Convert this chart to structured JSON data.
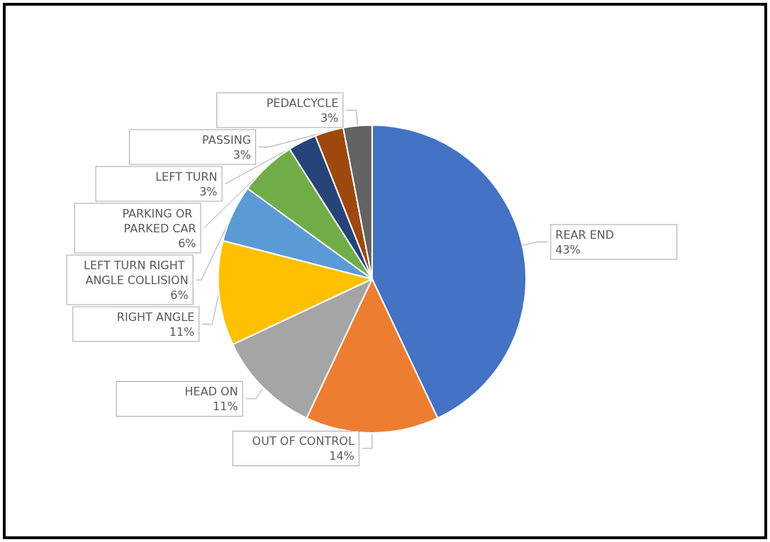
{
  "chart_data": {
    "type": "pie",
    "categories": [
      "REAR END",
      "OUT OF CONTROL",
      "HEAD ON",
      "RIGHT ANGLE",
      "LEFT TURN RIGHT ANGLE COLLISION",
      "PARKING OR PARKED CAR",
      "LEFT TURN",
      "PASSING",
      "PEDALCYCLE"
    ],
    "values": [
      43,
      14,
      11,
      11,
      6,
      6,
      3,
      3,
      3
    ],
    "colors": [
      "#4472c4",
      "#ed7d31",
      "#a5a5a5",
      "#ffc000",
      "#5b9bd5",
      "#70ad47",
      "#264478",
      "#9e480e",
      "#636363"
    ],
    "value_labels": [
      "43%",
      "14%",
      "11%",
      "11%",
      "6%",
      "6%",
      "3%",
      "3%",
      "3%"
    ],
    "legend": false
  }
}
